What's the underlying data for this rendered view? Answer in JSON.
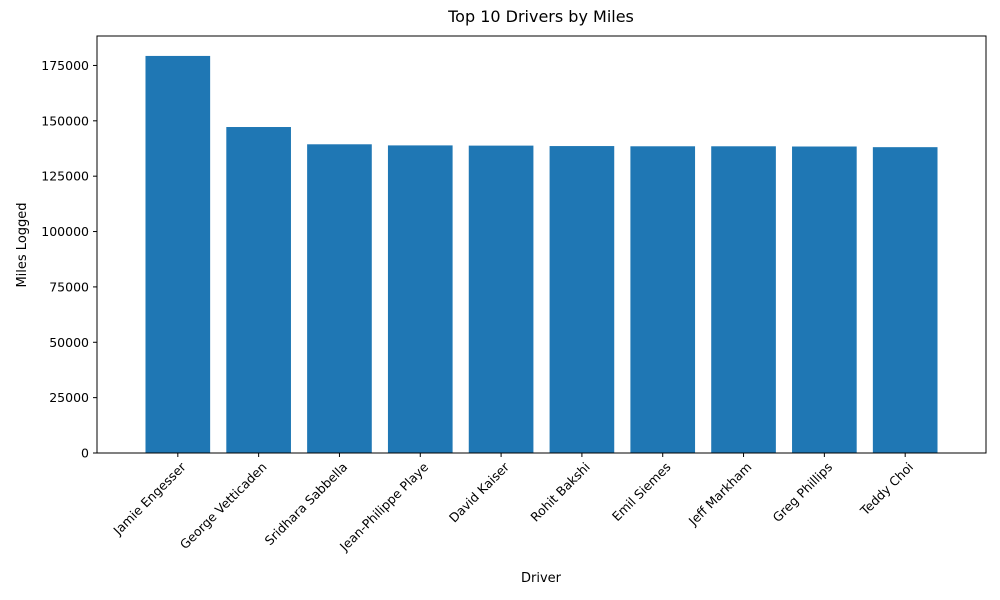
{
  "chart_data": {
    "type": "bar",
    "title": "Top 10 Drivers by Miles",
    "xlabel": "Driver",
    "ylabel": "Miles Logged",
    "categories": [
      "Jamie Engesser",
      "George Vetticaden",
      "Sridhara Sabbella",
      "Jean-Philippe Playe",
      "David Kaiser",
      "Rohit Bakshi",
      "Emil Siemes",
      "Jeff Markham",
      "Greg Phillips",
      "Teddy Choi"
    ],
    "values": [
      179300,
      147200,
      139400,
      138900,
      138800,
      138600,
      138500,
      138500,
      138400,
      138100
    ],
    "ylim": [
      0,
      188300
    ],
    "yticks": [
      0,
      25000,
      50000,
      75000,
      100000,
      125000,
      150000,
      175000
    ],
    "bar_color": "#1f77b4",
    "grid": false,
    "legend": "none"
  }
}
